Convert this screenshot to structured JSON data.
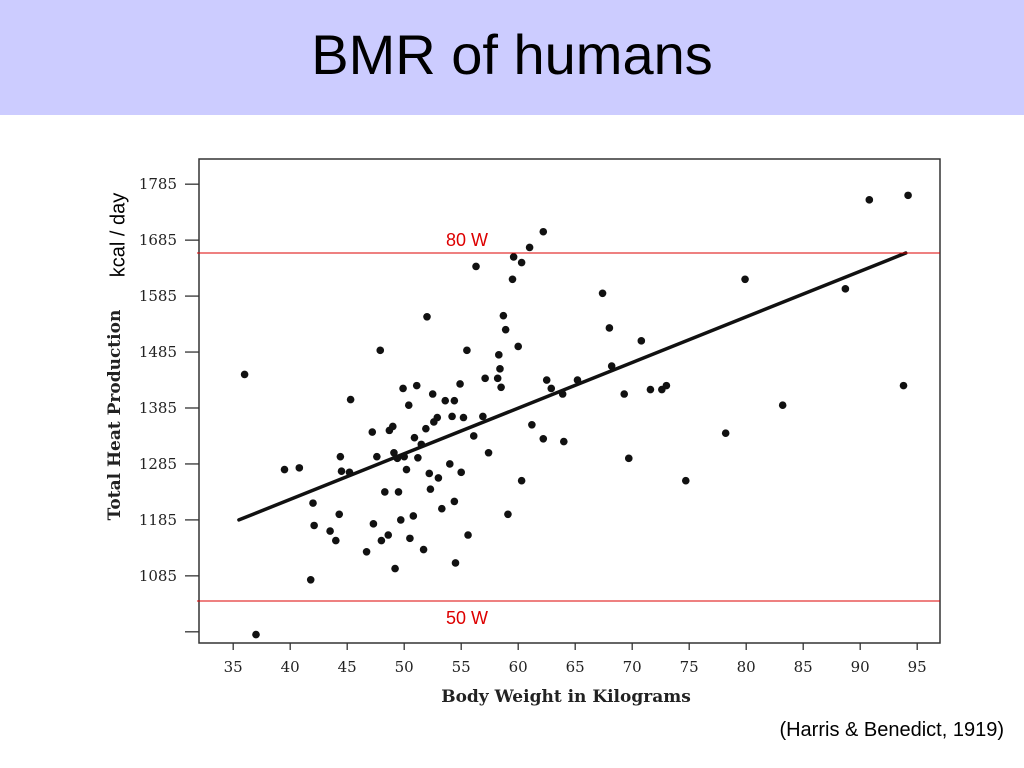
{
  "slide": {
    "title": "BMR of humans",
    "unit_label": "kcal / day",
    "citation": "(Harris & Benedict, 1919)"
  },
  "colors": {
    "title_band": "#ccccff",
    "reference_line": "#dd0000",
    "points": "#111111"
  },
  "chart_data": {
    "type": "scatter",
    "xlabel": "Body Weight in Kilograms",
    "ylabel": "Total Heat Production",
    "xlim": [
      32,
      97
    ],
    "ylim": [
      965,
      1830
    ],
    "x_ticks": [
      35,
      40,
      45,
      50,
      55,
      60,
      65,
      70,
      75,
      80,
      85,
      90,
      95
    ],
    "y_ticks": [
      985,
      1085,
      1185,
      1285,
      1385,
      1485,
      1585,
      1685,
      1785
    ],
    "y_tick_labels": [
      "",
      "1085",
      "1185",
      "1285",
      "1385",
      "1485",
      "1585",
      "1685",
      "1785"
    ],
    "grid": false,
    "series": [
      {
        "points": [
          [
            36,
            1445
          ],
          [
            37,
            980
          ],
          [
            39.5,
            1275
          ],
          [
            40.8,
            1278
          ],
          [
            41.8,
            1078
          ],
          [
            42,
            1215
          ],
          [
            42.1,
            1175
          ],
          [
            43.5,
            1165
          ],
          [
            44,
            1148
          ],
          [
            44.3,
            1195
          ],
          [
            44.4,
            1298
          ],
          [
            44.5,
            1272
          ],
          [
            45.2,
            1270
          ],
          [
            45.3,
            1400
          ],
          [
            46.7,
            1128
          ],
          [
            47.2,
            1342
          ],
          [
            47.3,
            1178
          ],
          [
            47.6,
            1298
          ],
          [
            47.9,
            1488
          ],
          [
            48,
            1148
          ],
          [
            48.3,
            1235
          ],
          [
            48.6,
            1158
          ],
          [
            48.7,
            1345
          ],
          [
            49,
            1352
          ],
          [
            49.1,
            1305
          ],
          [
            49.2,
            1098
          ],
          [
            49.4,
            1295
          ],
          [
            49.5,
            1235
          ],
          [
            49.7,
            1185
          ],
          [
            49.9,
            1420
          ],
          [
            50,
            1298
          ],
          [
            50.2,
            1275
          ],
          [
            50.4,
            1390
          ],
          [
            50.5,
            1152
          ],
          [
            50.8,
            1192
          ],
          [
            50.9,
            1332
          ],
          [
            51.1,
            1425
          ],
          [
            51.2,
            1296
          ],
          [
            51.5,
            1320
          ],
          [
            51.7,
            1132
          ],
          [
            51.9,
            1348
          ],
          [
            52,
            1548
          ],
          [
            52.2,
            1268
          ],
          [
            52.3,
            1240
          ],
          [
            52.5,
            1410
          ],
          [
            52.6,
            1360
          ],
          [
            52.9,
            1368
          ],
          [
            53,
            1260
          ],
          [
            53.3,
            1205
          ],
          [
            53.6,
            1398
          ],
          [
            54,
            1285
          ],
          [
            54.2,
            1370
          ],
          [
            54.4,
            1398
          ],
          [
            54.4,
            1218
          ],
          [
            54.5,
            1108
          ],
          [
            54.9,
            1428
          ],
          [
            55,
            1270
          ],
          [
            55.2,
            1368
          ],
          [
            55.5,
            1488
          ],
          [
            55.6,
            1158
          ],
          [
            56.1,
            1335
          ],
          [
            56.3,
            1638
          ],
          [
            56.9,
            1370
          ],
          [
            57.1,
            1438
          ],
          [
            57.4,
            1305
          ],
          [
            58.2,
            1438
          ],
          [
            58.3,
            1480
          ],
          [
            58.4,
            1455
          ],
          [
            58.5,
            1422
          ],
          [
            58.7,
            1550
          ],
          [
            58.9,
            1525
          ],
          [
            59.1,
            1195
          ],
          [
            59.5,
            1615
          ],
          [
            59.6,
            1655
          ],
          [
            60,
            1495
          ],
          [
            60.3,
            1645
          ],
          [
            60.3,
            1255
          ],
          [
            61,
            1672
          ],
          [
            61.2,
            1355
          ],
          [
            62.2,
            1700
          ],
          [
            62.2,
            1330
          ],
          [
            62.5,
            1435
          ],
          [
            62.9,
            1420
          ],
          [
            63.9,
            1410
          ],
          [
            64,
            1325
          ],
          [
            65.2,
            1435
          ],
          [
            67.4,
            1590
          ],
          [
            68,
            1528
          ],
          [
            68.2,
            1460
          ],
          [
            69.3,
            1410
          ],
          [
            69.7,
            1295
          ],
          [
            70.8,
            1505
          ],
          [
            71.6,
            1418
          ],
          [
            72.6,
            1418
          ],
          [
            73,
            1425
          ],
          [
            74.7,
            1255
          ],
          [
            78.2,
            1340
          ],
          [
            79.9,
            1615
          ],
          [
            83.2,
            1390
          ],
          [
            88.7,
            1598
          ],
          [
            90.8,
            1757
          ],
          [
            93.8,
            1425
          ],
          [
            94.2,
            1765
          ]
        ]
      }
    ],
    "fit_line": {
      "x": [
        35.5,
        94
      ],
      "y": [
        1185,
        1662
      ]
    },
    "reference_lines": [
      {
        "label": "80 W",
        "y": 1662
      },
      {
        "label": "50 W",
        "y": 1040
      }
    ]
  }
}
